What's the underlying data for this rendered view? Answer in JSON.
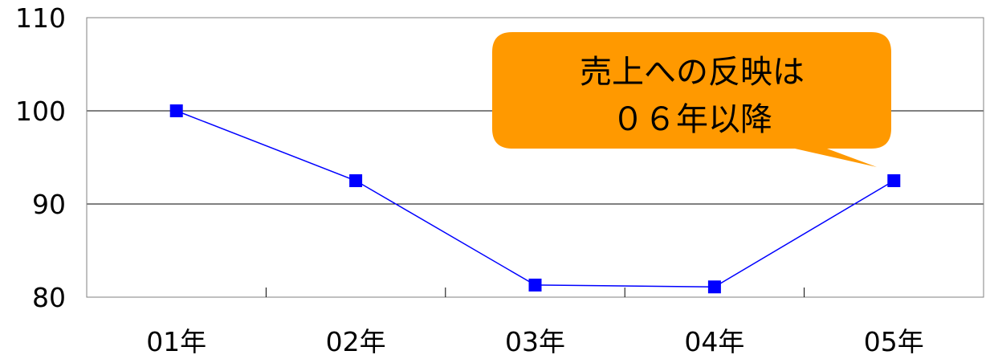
{
  "chart_data": {
    "type": "line",
    "categories": [
      "01年",
      "02年",
      "03年",
      "04年",
      "05年"
    ],
    "series": [
      {
        "values": [
          100,
          92.5,
          81.3,
          81.1,
          92.5
        ],
        "color": "#0000ff",
        "marker": "square"
      }
    ],
    "ylim": [
      80,
      110
    ],
    "yticks": [
      80,
      90,
      100,
      110
    ],
    "grid": true,
    "legend": "none",
    "annotation": {
      "lines": [
        "売上への反映は",
        "０６年以降"
      ],
      "fill": "#ff9900",
      "points_to": "05年"
    }
  }
}
